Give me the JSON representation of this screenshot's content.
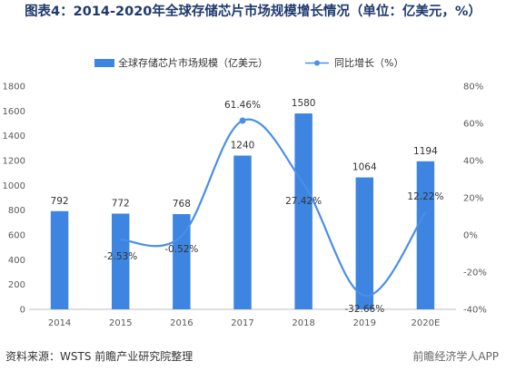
{
  "header": {
    "title": "图表4：2014-2020年全球存储芯片市场规模增长情况（单位：亿美元，%）"
  },
  "footer": {
    "source": "资料来源：WSTS 前瞻产业研究院整理",
    "watermark": "前瞻经济学人APP"
  },
  "colors": {
    "bar": "#3d85e0",
    "line": "#4a8fe8",
    "grid": "#e6e6e6"
  },
  "chart_data": {
    "type": "bar",
    "title": "",
    "categories": [
      "2014",
      "2015",
      "2016",
      "2017",
      "2018",
      "2019",
      "2020E"
    ],
    "series": [
      {
        "name": "全球存储芯片市场规模（亿美元）",
        "type": "bar",
        "axis": "left",
        "values": [
          792,
          772,
          768,
          1240,
          1580,
          1064,
          1194
        ],
        "labels": [
          "792",
          "772",
          "768",
          "1240",
          "1580",
          "1064",
          "1194"
        ]
      },
      {
        "name": "同比增长（%）",
        "type": "line",
        "axis": "right",
        "values": [
          null,
          -2.53,
          -0.52,
          61.46,
          27.42,
          -32.66,
          12.22
        ],
        "labels": [
          "",
          "-2.53%",
          "-0.52%",
          "61.46%",
          "27.42%",
          "-32.66%",
          "12.22%"
        ]
      }
    ],
    "y_left": {
      "min": 0,
      "max": 1800,
      "ticks": [
        "0",
        "200",
        "400",
        "600",
        "800",
        "1000",
        "1200",
        "1400",
        "1600",
        "1800"
      ]
    },
    "y_right": {
      "min": -40,
      "max": 80,
      "ticks": [
        "-40%",
        "-20%",
        "0%",
        "20%",
        "40%",
        "60%",
        "80%"
      ]
    },
    "legend": "top-center",
    "grid": false
  }
}
